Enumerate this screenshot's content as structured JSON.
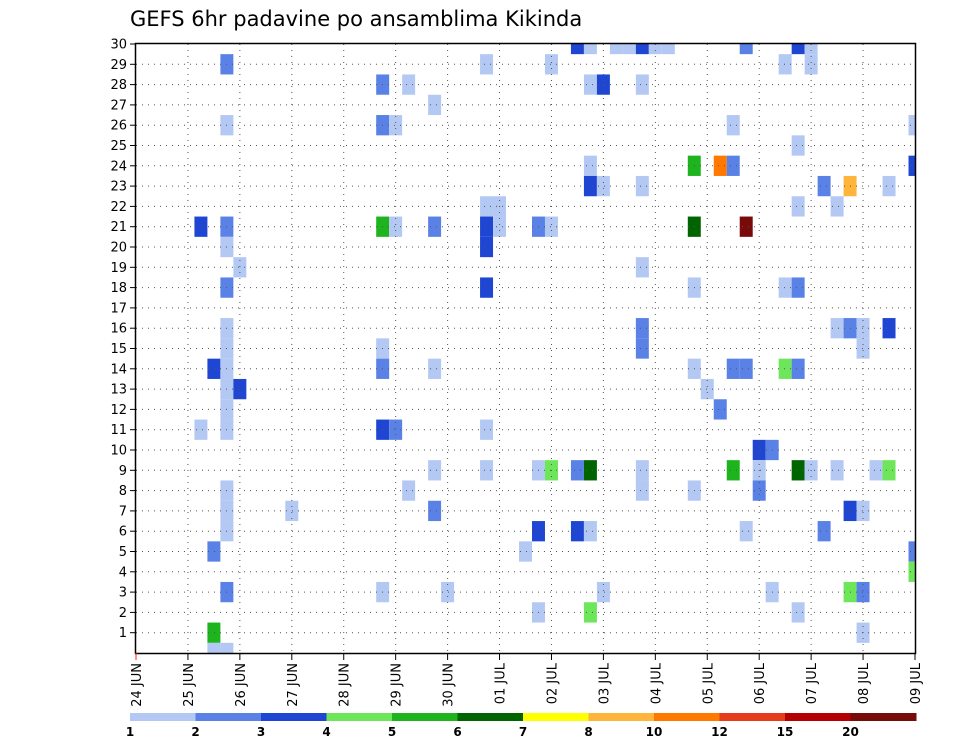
{
  "chart_data": {
    "type": "heatmap",
    "title": "GEFS 6hr padavine po ansamblima Kikinda",
    "xlabel": "",
    "ylabel": "",
    "x_tick_labels": [
      "24 JUN",
      "25 JUN",
      "26 JUN",
      "27 JUN",
      "28 JUN",
      "29 JUN",
      "30 JUN",
      "01 JUL",
      "02 JUL",
      "03 JUL",
      "04 JUL",
      "05 JUL",
      "06 JUL",
      "07 JUL",
      "08 JUL",
      "09 JUL"
    ],
    "x_range_days": [
      0,
      15
    ],
    "y_tick_labels": [
      "1",
      "2",
      "3",
      "4",
      "5",
      "6",
      "7",
      "8",
      "9",
      "10",
      "11",
      "12",
      "13",
      "14",
      "15",
      "16",
      "17",
      "18",
      "19",
      "20",
      "21",
      "22",
      "23",
      "24",
      "25",
      "26",
      "27",
      "28",
      "29",
      "30"
    ],
    "y_range": [
      0,
      30
    ],
    "grid": true,
    "legend": {
      "placement": "bottom",
      "labels": [
        "1",
        "2",
        "3",
        "4",
        "5",
        "6",
        "7",
        "8",
        "10",
        "12",
        "15",
        "20"
      ],
      "colors": [
        "#b4c8f4",
        "#5a82e6",
        "#1e46d2",
        "#6ee65a",
        "#1eb41e",
        "#006400",
        "#ffff00",
        "#ffb43c",
        "#ff7800",
        "#e63c1e",
        "#b40000",
        "#780a0a"
      ]
    },
    "cells": [
      {
        "day": 1.25,
        "member": 11,
        "cat": 1
      },
      {
        "day": 1.25,
        "member": 21,
        "cat": 3
      },
      {
        "day": 1.5,
        "member": 14,
        "cat": 3
      },
      {
        "day": 1.5,
        "member": 5,
        "cat": 2
      },
      {
        "day": 1.5,
        "member": 1,
        "cat": 5
      },
      {
        "day": 1.5,
        "member": 0,
        "cat": 1
      },
      {
        "day": 1.75,
        "member": 29,
        "cat": 2
      },
      {
        "day": 1.75,
        "member": 26,
        "cat": 1
      },
      {
        "day": 1.75,
        "member": 21,
        "cat": 2
      },
      {
        "day": 1.75,
        "member": 20,
        "cat": 1
      },
      {
        "day": 1.75,
        "member": 18,
        "cat": 2
      },
      {
        "day": 1.75,
        "member": 16,
        "cat": 1
      },
      {
        "day": 1.75,
        "member": 15,
        "cat": 1
      },
      {
        "day": 1.75,
        "member": 14,
        "cat": 1
      },
      {
        "day": 1.75,
        "member": 13,
        "cat": 1
      },
      {
        "day": 1.75,
        "member": 12,
        "cat": 1
      },
      {
        "day": 1.75,
        "member": 11,
        "cat": 1
      },
      {
        "day": 1.75,
        "member": 8,
        "cat": 1
      },
      {
        "day": 1.75,
        "member": 7,
        "cat": 1
      },
      {
        "day": 1.75,
        "member": 6,
        "cat": 1
      },
      {
        "day": 1.75,
        "member": 3,
        "cat": 2
      },
      {
        "day": 1.75,
        "member": 0,
        "cat": 1
      },
      {
        "day": 2.0,
        "member": 19,
        "cat": 1
      },
      {
        "day": 2.0,
        "member": 13,
        "cat": 3
      },
      {
        "day": 3.0,
        "member": 7,
        "cat": 1
      },
      {
        "day": 4.75,
        "member": 28,
        "cat": 2
      },
      {
        "day": 4.75,
        "member": 26,
        "cat": 2
      },
      {
        "day": 4.75,
        "member": 21,
        "cat": 5
      },
      {
        "day": 4.75,
        "member": 15,
        "cat": 1
      },
      {
        "day": 4.75,
        "member": 14,
        "cat": 2
      },
      {
        "day": 4.75,
        "member": 11,
        "cat": 3
      },
      {
        "day": 4.75,
        "member": 3,
        "cat": 1
      },
      {
        "day": 5.0,
        "member": 26,
        "cat": 1
      },
      {
        "day": 5.0,
        "member": 21,
        "cat": 1
      },
      {
        "day": 5.0,
        "member": 11,
        "cat": 2
      },
      {
        "day": 5.25,
        "member": 28,
        "cat": 1
      },
      {
        "day": 5.25,
        "member": 8,
        "cat": 1
      },
      {
        "day": 5.75,
        "member": 27,
        "cat": 1
      },
      {
        "day": 5.75,
        "member": 21,
        "cat": 2
      },
      {
        "day": 5.75,
        "member": 14,
        "cat": 1
      },
      {
        "day": 5.75,
        "member": 9,
        "cat": 1
      },
      {
        "day": 5.75,
        "member": 7,
        "cat": 2
      },
      {
        "day": 6.0,
        "member": 3,
        "cat": 1
      },
      {
        "day": 6.75,
        "member": 29,
        "cat": 1
      },
      {
        "day": 6.75,
        "member": 22,
        "cat": 1
      },
      {
        "day": 6.75,
        "member": 21,
        "cat": 3
      },
      {
        "day": 6.75,
        "member": 20,
        "cat": 3
      },
      {
        "day": 6.75,
        "member": 18,
        "cat": 3
      },
      {
        "day": 6.75,
        "member": 11,
        "cat": 1
      },
      {
        "day": 6.75,
        "member": 9,
        "cat": 1
      },
      {
        "day": 7.0,
        "member": 22,
        "cat": 1
      },
      {
        "day": 7.0,
        "member": 21,
        "cat": 1
      },
      {
        "day": 7.5,
        "member": 5,
        "cat": 1
      },
      {
        "day": 7.75,
        "member": 21,
        "cat": 2
      },
      {
        "day": 7.75,
        "member": 9,
        "cat": 1
      },
      {
        "day": 7.75,
        "member": 6,
        "cat": 3
      },
      {
        "day": 7.75,
        "member": 2,
        "cat": 1
      },
      {
        "day": 8.0,
        "member": 29,
        "cat": 1
      },
      {
        "day": 8.0,
        "member": 21,
        "cat": 1
      },
      {
        "day": 8.0,
        "member": 9,
        "cat": 4
      },
      {
        "day": 8.5,
        "member": 30,
        "cat": 3
      },
      {
        "day": 8.5,
        "member": 9,
        "cat": 2
      },
      {
        "day": 8.5,
        "member": 6,
        "cat": 3
      },
      {
        "day": 8.75,
        "member": 30,
        "cat": 1
      },
      {
        "day": 8.75,
        "member": 28,
        "cat": 1
      },
      {
        "day": 8.75,
        "member": 24,
        "cat": 1
      },
      {
        "day": 8.75,
        "member": 23,
        "cat": 3
      },
      {
        "day": 8.75,
        "member": 9,
        "cat": 6
      },
      {
        "day": 8.75,
        "member": 6,
        "cat": 1
      },
      {
        "day": 8.75,
        "member": 2,
        "cat": 4
      },
      {
        "day": 9.0,
        "member": 28,
        "cat": 3
      },
      {
        "day": 9.0,
        "member": 23,
        "cat": 1
      },
      {
        "day": 9.0,
        "member": 3,
        "cat": 1
      },
      {
        "day": 9.25,
        "member": 30,
        "cat": 1
      },
      {
        "day": 9.5,
        "member": 30,
        "cat": 1
      },
      {
        "day": 9.75,
        "member": 30,
        "cat": 3
      },
      {
        "day": 9.75,
        "member": 28,
        "cat": 1
      },
      {
        "day": 9.75,
        "member": 23,
        "cat": 1
      },
      {
        "day": 9.75,
        "member": 19,
        "cat": 1
      },
      {
        "day": 9.75,
        "member": 16,
        "cat": 2
      },
      {
        "day": 9.75,
        "member": 15,
        "cat": 2
      },
      {
        "day": 9.75,
        "member": 9,
        "cat": 1
      },
      {
        "day": 9.75,
        "member": 8,
        "cat": 1
      },
      {
        "day": 10.0,
        "member": 30,
        "cat": 1
      },
      {
        "day": 10.25,
        "member": 30,
        "cat": 1
      },
      {
        "day": 10.75,
        "member": 24,
        "cat": 5
      },
      {
        "day": 10.75,
        "member": 21,
        "cat": 6
      },
      {
        "day": 10.75,
        "member": 18,
        "cat": 1
      },
      {
        "day": 10.75,
        "member": 14,
        "cat": 1
      },
      {
        "day": 10.75,
        "member": 8,
        "cat": 1
      },
      {
        "day": 11.0,
        "member": 13,
        "cat": 1
      },
      {
        "day": 11.25,
        "member": 24,
        "cat": 9
      },
      {
        "day": 11.25,
        "member": 12,
        "cat": 2
      },
      {
        "day": 11.5,
        "member": 24,
        "cat": 2
      },
      {
        "day": 11.5,
        "member": 26,
        "cat": 1
      },
      {
        "day": 11.5,
        "member": 14,
        "cat": 2
      },
      {
        "day": 11.5,
        "member": 9,
        "cat": 5
      },
      {
        "day": 11.75,
        "member": 30,
        "cat": 2
      },
      {
        "day": 11.75,
        "member": 21,
        "cat": 12
      },
      {
        "day": 11.75,
        "member": 14,
        "cat": 2
      },
      {
        "day": 11.75,
        "member": 6,
        "cat": 1
      },
      {
        "day": 12.0,
        "member": 10,
        "cat": 3
      },
      {
        "day": 12.0,
        "member": 9,
        "cat": 1
      },
      {
        "day": 12.0,
        "member": 8,
        "cat": 2
      },
      {
        "day": 12.25,
        "member": 10,
        "cat": 2
      },
      {
        "day": 12.25,
        "member": 3,
        "cat": 1
      },
      {
        "day": 12.5,
        "member": 29,
        "cat": 1
      },
      {
        "day": 12.5,
        "member": 18,
        "cat": 1
      },
      {
        "day": 12.5,
        "member": 14,
        "cat": 4
      },
      {
        "day": 12.75,
        "member": 30,
        "cat": 3
      },
      {
        "day": 12.75,
        "member": 25,
        "cat": 1
      },
      {
        "day": 12.75,
        "member": 22,
        "cat": 1
      },
      {
        "day": 12.75,
        "member": 18,
        "cat": 2
      },
      {
        "day": 12.75,
        "member": 14,
        "cat": 2
      },
      {
        "day": 12.75,
        "member": 9,
        "cat": 6
      },
      {
        "day": 12.75,
        "member": 2,
        "cat": 1
      },
      {
        "day": 13.0,
        "member": 30,
        "cat": 1
      },
      {
        "day": 13.0,
        "member": 29,
        "cat": 1
      },
      {
        "day": 13.0,
        "member": 9,
        "cat": 1
      },
      {
        "day": 13.25,
        "member": 23,
        "cat": 2
      },
      {
        "day": 13.25,
        "member": 6,
        "cat": 2
      },
      {
        "day": 13.5,
        "member": 22,
        "cat": 1
      },
      {
        "day": 13.5,
        "member": 16,
        "cat": 1
      },
      {
        "day": 13.5,
        "member": 9,
        "cat": 1
      },
      {
        "day": 13.75,
        "member": 23,
        "cat": 8
      },
      {
        "day": 13.75,
        "member": 16,
        "cat": 2
      },
      {
        "day": 13.75,
        "member": 7,
        "cat": 3
      },
      {
        "day": 13.75,
        "member": 3,
        "cat": 4
      },
      {
        "day": 14.0,
        "member": 16,
        "cat": 1
      },
      {
        "day": 14.0,
        "member": 15,
        "cat": 1
      },
      {
        "day": 14.0,
        "member": 7,
        "cat": 1
      },
      {
        "day": 14.0,
        "member": 3,
        "cat": 2
      },
      {
        "day": 14.0,
        "member": 1,
        "cat": 1
      },
      {
        "day": 14.25,
        "member": 9,
        "cat": 1
      },
      {
        "day": 14.5,
        "member": 23,
        "cat": 1
      },
      {
        "day": 14.5,
        "member": 16,
        "cat": 3
      },
      {
        "day": 14.5,
        "member": 9,
        "cat": 4
      },
      {
        "day": 15.0,
        "member": 26,
        "cat": 1
      },
      {
        "day": 15.0,
        "member": 24,
        "cat": 3
      },
      {
        "day": 15.0,
        "member": 5,
        "cat": 2
      },
      {
        "day": 15.0,
        "member": 4,
        "cat": 4
      }
    ]
  }
}
